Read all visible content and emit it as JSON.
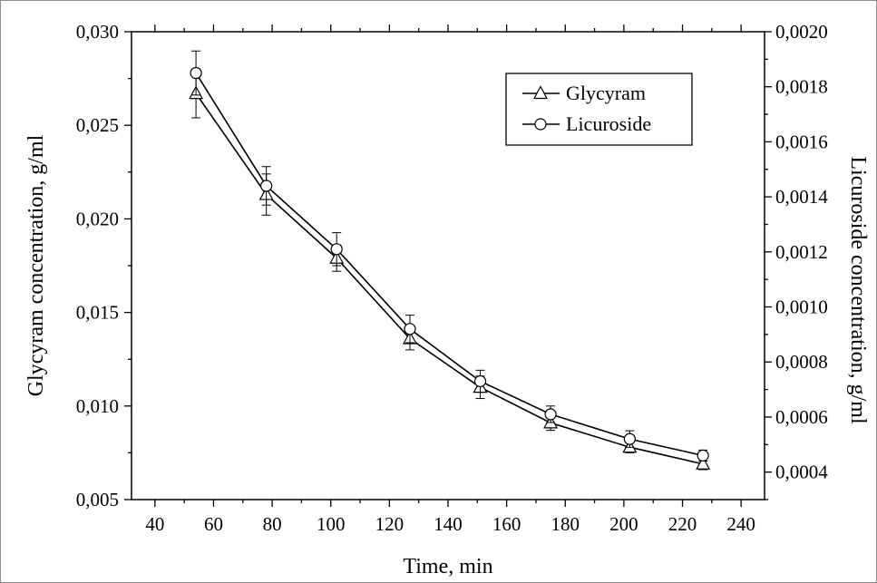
{
  "chart_data": {
    "type": "line",
    "xlabel": "Time, min",
    "ylabel": "Glycyram concentration, g/ml",
    "ylabel_right": "Licuroside concentration, g/ml",
    "xlim": [
      32,
      248
    ],
    "ylim": [
      0.005,
      0.03
    ],
    "ylim_right": [
      0.0003,
      0.002
    ],
    "x_tick_labels": [
      "40",
      "60",
      "80",
      "100",
      "120",
      "140",
      "160",
      "180",
      "200",
      "220",
      "240"
    ],
    "y_tick_labels": [
      "0,005",
      "0,010",
      "0,015",
      "0,020",
      "0,025",
      "0,030"
    ],
    "y_right_tick_labels": [
      "0,0004",
      "0,0006",
      "0,0008",
      "0,0010",
      "0,0012",
      "0,0014",
      "0,0016",
      "0,0018",
      "0,0020"
    ],
    "grid": false,
    "legend": {
      "placement": "top-right"
    },
    "x": [
      54,
      78,
      102,
      127,
      151,
      175,
      202,
      227
    ],
    "series": [
      {
        "name": "Glycyram",
        "y_axis": "left",
        "marker": "triangle",
        "color": "#000000",
        "values": [
          0.0267,
          0.0213,
          0.0179,
          0.0136,
          0.011,
          0.0091,
          0.0078,
          0.0069
        ],
        "error": [
          0.0013,
          0.0011,
          0.0007,
          0.0006,
          0.0006,
          0.0004,
          0.0003,
          0.0003
        ]
      },
      {
        "name": "Licuroside",
        "y_axis": "right",
        "marker": "circle",
        "color": "#000000",
        "values": [
          0.00185,
          0.00144,
          0.00121,
          0.00092,
          0.00073,
          0.00061,
          0.00052,
          0.00046
        ],
        "error": [
          8e-05,
          7e-05,
          6e-05,
          5e-05,
          4e-05,
          3e-05,
          3e-05,
          2e-05
        ]
      }
    ]
  }
}
